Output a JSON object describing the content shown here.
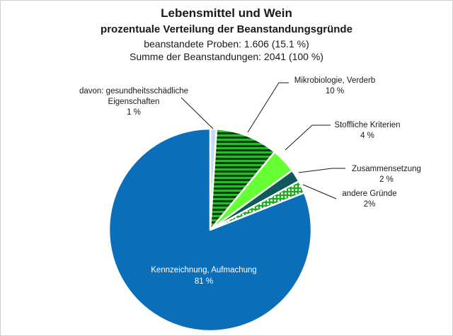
{
  "chart_data": {
    "type": "pie",
    "title": "Lebensmittel und Wein",
    "subtitle": "prozentuale Verteilung der Beanstandungsgründe",
    "info_lines": [
      "beanstandete Proben: 1.606 (15.1 %)",
      "Summe der Beanstandungen: 2041 (100 %)"
    ],
    "start_angle_deg": 0,
    "slices": [
      {
        "key": "gesundheit",
        "label_lines": [
          "davon: gesundheitsschädliche",
          "Eigenschaften"
        ],
        "value_label": "1 %",
        "value": 1,
        "color": "#c5dcf0",
        "pattern": "none"
      },
      {
        "key": "mikro",
        "label_lines": [
          "Mikrobiologie, Verderb"
        ],
        "value_label": "10 %",
        "value": 10,
        "color": "#2fb82f",
        "pattern": "hstripes"
      },
      {
        "key": "stofflich",
        "label_lines": [
          "Stoffliche Kriterien"
        ],
        "value_label": "4 %",
        "value": 4,
        "color": "#66ff33",
        "pattern": "none"
      },
      {
        "key": "zusammen",
        "label_lines": [
          "Zusammensetzung"
        ],
        "value_label": "2 %",
        "value": 2,
        "color": "#0e5a5a",
        "pattern": "none"
      },
      {
        "key": "andere",
        "label_lines": [
          "andere Gründe"
        ],
        "value_label": "2%",
        "value": 2,
        "color": "#22aa22",
        "pattern": "dots"
      },
      {
        "key": "kennzeichnung",
        "label_lines": [
          "Kennzeichnung, Aufmachung"
        ],
        "value_label": "81 %",
        "value": 81,
        "color": "#0a6eb8",
        "pattern": "none"
      }
    ],
    "legend": "none"
  }
}
